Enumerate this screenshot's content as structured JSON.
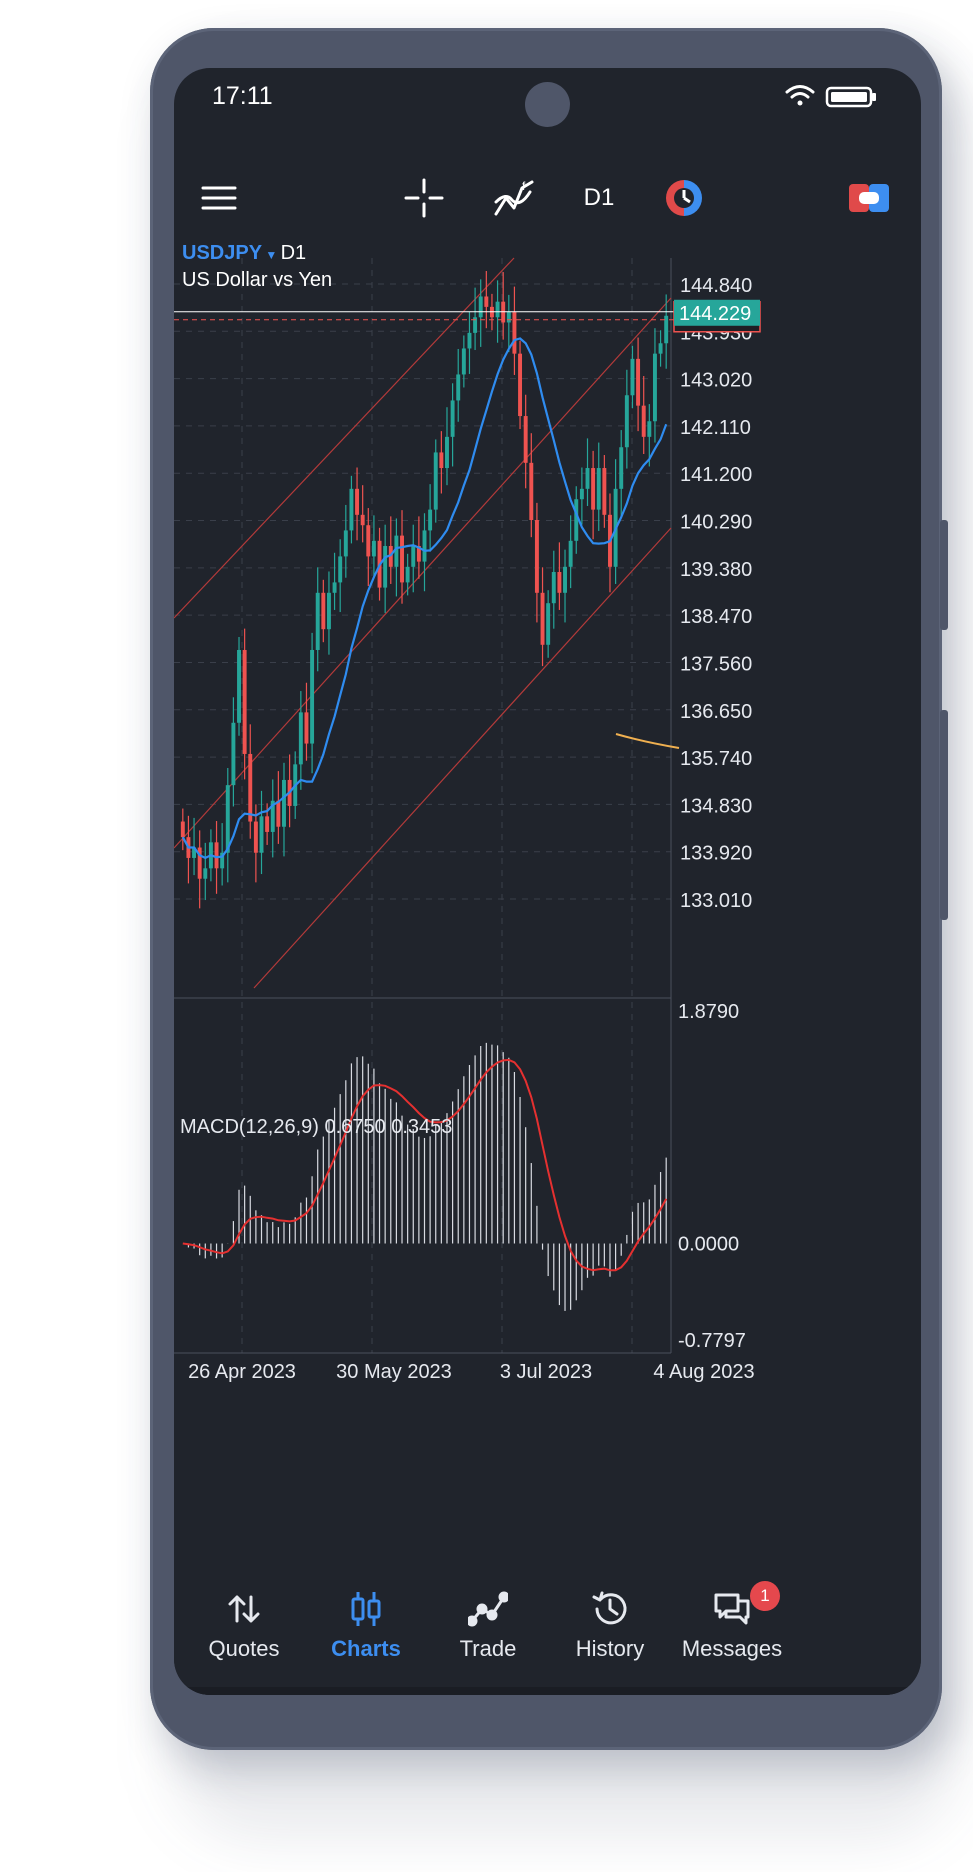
{
  "status_bar": {
    "time": "17:11"
  },
  "toolbar": {
    "timeframe": "D1"
  },
  "chart": {
    "symbol": "USDJPY",
    "timeframe": "D1",
    "description": "US Dollar vs Yen",
    "current_price": "144.229",
    "price_ticks": [
      "144.840",
      "143.930",
      "143.020",
      "142.110",
      "141.200",
      "140.290",
      "139.380",
      "138.470",
      "137.560",
      "136.650",
      "135.740",
      "134.830",
      "133.920",
      "133.010"
    ],
    "macd_label": "MACD(12,26,9) 0.6750 0.3453",
    "macd_ticks": [
      "1.8790",
      "0.0000",
      "-0.7797"
    ],
    "date_ticks": [
      "26 Apr 2023",
      "30 May 2023",
      "3 Jul 2023",
      "4 Aug 2023"
    ],
    "colors": {
      "bull": "#26a69a",
      "bear": "#ef5350",
      "ma": "#2f8cf0",
      "channel": "#b33a3a",
      "signal": "#e53030",
      "accent": "#3d8ef0"
    }
  },
  "chart_data": {
    "type": "candlestick",
    "symbol": "USDJPY",
    "timeframe": "D1",
    "y_range": [
      132.3,
      145.5
    ],
    "closes": [
      134.2,
      133.8,
      134.0,
      133.4,
      133.6,
      134.1,
      133.6,
      133.9,
      135.2,
      136.4,
      137.8,
      135.8,
      134.5,
      133.9,
      134.6,
      134.3,
      134.9,
      134.4,
      135.3,
      134.8,
      135.6,
      136.6,
      136.0,
      137.8,
      138.9,
      138.2,
      138.9,
      139.1,
      139.6,
      140.1,
      140.9,
      140.4,
      140.2,
      139.6,
      139.9,
      139.0,
      139.8,
      139.4,
      140.0,
      139.1,
      139.4,
      139.8,
      139.5,
      140.1,
      140.5,
      141.6,
      141.3,
      141.9,
      142.6,
      143.1,
      143.6,
      143.9,
      144.2,
      144.6,
      144.4,
      144.2,
      144.5,
      144.1,
      144.3,
      143.5,
      142.3,
      141.4,
      140.3,
      138.9,
      137.9,
      138.7,
      139.3,
      138.9,
      139.4,
      139.9,
      140.7,
      140.9,
      141.3,
      140.5,
      141.3,
      140.4,
      139.4,
      140.9,
      141.7,
      142.7,
      143.4,
      142.5,
      141.9,
      142.2,
      143.5,
      143.7,
      144.229
    ],
    "ma_period_line": "blue",
    "macd": {
      "params": "12,26,9",
      "value": 0.675,
      "signal": 0.3453,
      "y_range": [
        -0.7797,
        1.879
      ]
    },
    "x_labels": [
      "26 Apr 2023",
      "30 May 2023",
      "3 Jul 2023",
      "4 Aug 2023"
    ]
  },
  "nav": {
    "items": [
      {
        "label": "Quotes",
        "icon": "arrows-up-down-icon"
      },
      {
        "label": "Charts",
        "icon": "candles-icon"
      },
      {
        "label": "Trade",
        "icon": "trend-icon"
      },
      {
        "label": "History",
        "icon": "history-icon"
      },
      {
        "label": "Messages",
        "icon": "chat-icon"
      }
    ],
    "messages_badge": "1"
  }
}
